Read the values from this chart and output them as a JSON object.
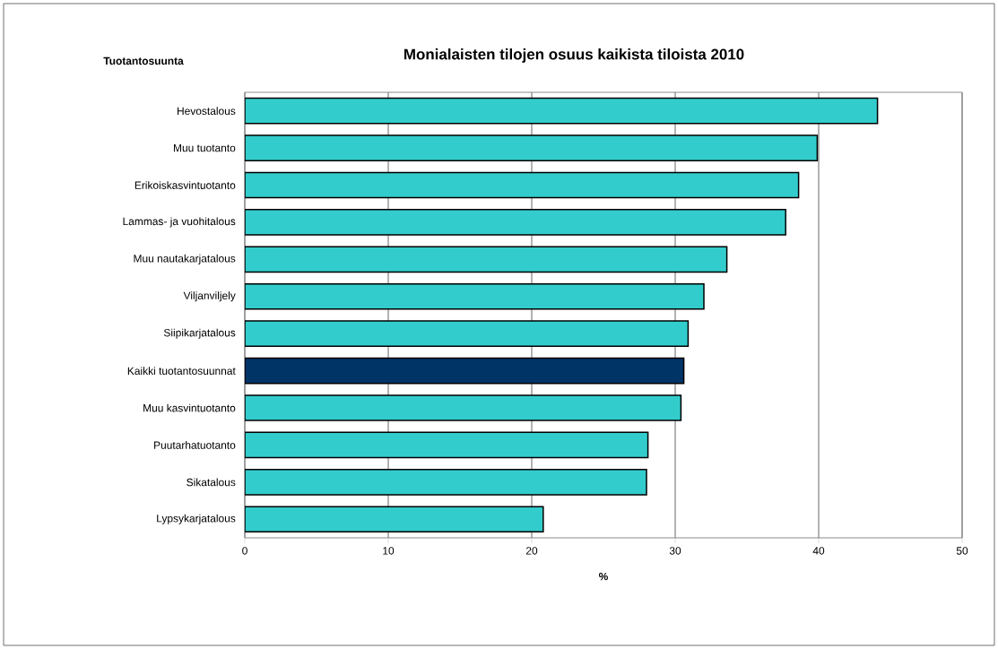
{
  "chart_data": {
    "type": "bar",
    "orientation": "horizontal",
    "title": "Monialaisten tilojen osuus kaikista tiloista 2010",
    "ylabel": "Tuotantosuunta",
    "xlabel": "%",
    "categories": [
      "Hevostalous",
      "Muu tuotanto",
      "Erikoiskasvintuotanto",
      "Lammas- ja vuohitalous",
      "Muu nautakarjatalous",
      "Viljanviljely",
      "Siipikarjatalous",
      "Kaikki tuotantosuunnat",
      "Muu kasvintuotanto",
      "Puutarhatuotanto",
      "Sikatalous",
      "Lypsykarjatalous"
    ],
    "values": [
      44.1,
      39.9,
      38.6,
      37.7,
      33.6,
      32.0,
      30.9,
      30.6,
      30.4,
      28.1,
      28.0,
      20.8
    ],
    "colors": [
      "#33cccc",
      "#33cccc",
      "#33cccc",
      "#33cccc",
      "#33cccc",
      "#33cccc",
      "#33cccc",
      "#003366",
      "#33cccc",
      "#33cccc",
      "#33cccc",
      "#33cccc"
    ],
    "xlim": [
      0,
      50
    ],
    "xticks": [
      0,
      10,
      20,
      30,
      40,
      50
    ],
    "grid": "x"
  }
}
